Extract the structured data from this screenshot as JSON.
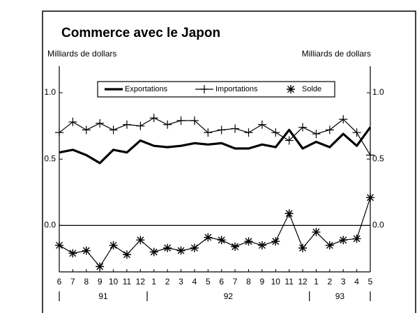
{
  "chart_data": {
    "type": "line",
    "title": "Commerce avec le Japon",
    "y_label": "Milliards de dollars",
    "y2_label": "Milliards de dollars",
    "categories": [
      "6",
      "7",
      "8",
      "9",
      "10",
      "11",
      "12",
      "1",
      "2",
      "3",
      "4",
      "5",
      "6",
      "7",
      "8",
      "9",
      "10",
      "11",
      "12",
      "1",
      "2",
      "3",
      "4",
      "5"
    ],
    "year_labels": [
      "91",
      "92",
      "93"
    ],
    "ylim": [
      -0.35,
      1.2
    ],
    "yticks": [
      {
        "value": 0,
        "label": "0.0"
      },
      0.5,
      {
        "value": 1,
        "label": "1.0"
      }
    ],
    "reference_line": 0,
    "legend": "top",
    "series": [
      {
        "name": "Exportations",
        "color": "#000000",
        "marker": "none",
        "width": 3.2,
        "values": [
          0.55,
          0.57,
          0.53,
          0.47,
          0.57,
          0.55,
          0.64,
          0.6,
          0.59,
          0.6,
          0.62,
          0.61,
          0.62,
          0.58,
          0.58,
          0.61,
          0.59,
          0.72,
          0.58,
          0.63,
          0.59,
          0.69,
          0.6,
          0.74
        ]
      },
      {
        "name": "Importations",
        "color": "#000000",
        "marker": "plus",
        "width": 1.2,
        "values": [
          0.7,
          0.78,
          0.72,
          0.77,
          0.72,
          0.76,
          0.75,
          0.81,
          0.76,
          0.79,
          0.79,
          0.7,
          0.72,
          0.73,
          0.7,
          0.76,
          0.7,
          0.64,
          0.74,
          0.69,
          0.72,
          0.8,
          0.7,
          0.53
        ]
      },
      {
        "name": "Solde",
        "color": "#000000",
        "marker": "asterisk",
        "width": 1.2,
        "values": [
          -0.15,
          -0.21,
          -0.19,
          -0.31,
          -0.15,
          -0.22,
          -0.11,
          -0.2,
          -0.17,
          -0.19,
          -0.17,
          -0.09,
          -0.11,
          -0.16,
          -0.12,
          -0.15,
          -0.12,
          0.09,
          -0.17,
          -0.05,
          -0.15,
          -0.11,
          -0.1,
          0.21
        ]
      }
    ]
  }
}
